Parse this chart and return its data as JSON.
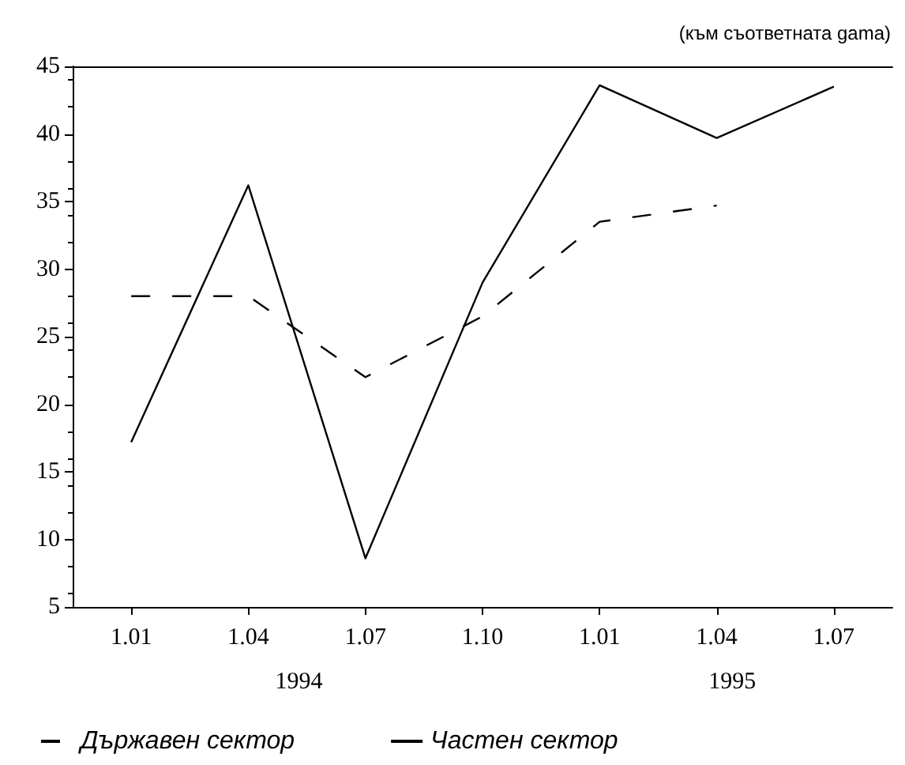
{
  "chart_data": {
    "type": "line",
    "subtitle": "(към съответната gama)",
    "categories": [
      "1.01",
      "1.04",
      "1.07",
      "1.10",
      "1.01",
      "1.04",
      "1.07"
    ],
    "annotations": [
      "1994",
      "1995"
    ],
    "series": [
      {
        "name": "Държавен сектор",
        "color": "#000000",
        "line_style": "dashed",
        "values": [
          28,
          28,
          22,
          26.5,
          33.5,
          34.7,
          null
        ]
      },
      {
        "name": "Частен сектор",
        "color": "#000000",
        "line_style": "solid",
        "values": [
          17.2,
          36.2,
          8.6,
          29,
          43.6,
          39.7,
          43.5
        ]
      }
    ],
    "ylim": [
      5,
      45
    ],
    "yticks": [
      5,
      10,
      15,
      20,
      25,
      30,
      35,
      40,
      45
    ],
    "legend": "bottom left",
    "marker": "none",
    "grid": false
  }
}
